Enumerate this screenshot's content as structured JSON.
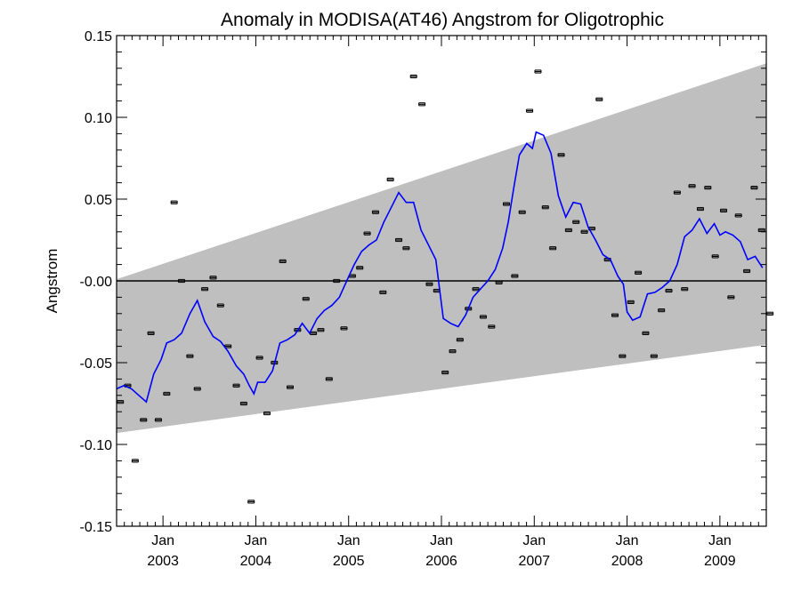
{
  "chart_data": {
    "type": "line",
    "title": "Anomaly in MODISA(AT46) Angstrom for Oligotrophic",
    "ylabel": "Angstrom",
    "xlabel": "",
    "xlim": [
      2002.5,
      2009.5
    ],
    "ylim": [
      -0.15,
      0.15
    ],
    "y_ticks": [
      {
        "value": 0.15,
        "label": "0.15"
      },
      {
        "value": 0.1,
        "label": "0.10"
      },
      {
        "value": 0.05,
        "label": "0.05"
      },
      {
        "value": 0.0,
        "label": "-0.00"
      },
      {
        "value": -0.05,
        "label": "-0.05"
      },
      {
        "value": -0.1,
        "label": "-0.10"
      },
      {
        "value": -0.15,
        "label": "-0.15"
      }
    ],
    "x_ticks": [
      {
        "value": 2003.0,
        "month": "Jan",
        "year": "2003"
      },
      {
        "value": 2004.0,
        "month": "Jan",
        "year": "2004"
      },
      {
        "value": 2005.0,
        "month": "Jan",
        "year": "2005"
      },
      {
        "value": 2006.0,
        "month": "Jan",
        "year": "2006"
      },
      {
        "value": 2007.0,
        "month": "Jan",
        "year": "2007"
      },
      {
        "value": 2008.0,
        "month": "Jan",
        "year": "2008"
      },
      {
        "value": 2009.0,
        "month": "Jan",
        "year": "2009"
      }
    ],
    "confidence_band": {
      "color": "#bfbfbf",
      "x": [
        2002.5,
        2009.5
      ],
      "upper": [
        0.001,
        0.133
      ],
      "lower": [
        -0.093,
        -0.039
      ]
    },
    "zero_line": 0.0,
    "series": [
      {
        "kind": "monthly-anomaly-points",
        "color": "#000000",
        "points": [
          [
            2002.54,
            -0.074
          ],
          [
            2002.62,
            -0.064
          ],
          [
            2002.7,
            -0.11
          ],
          [
            2002.79,
            -0.085
          ],
          [
            2002.87,
            -0.032
          ],
          [
            2002.95,
            -0.085
          ],
          [
            2003.04,
            -0.069
          ],
          [
            2003.12,
            0.048
          ],
          [
            2003.2,
            0.0
          ],
          [
            2003.29,
            -0.046
          ],
          [
            2003.37,
            -0.066
          ],
          [
            2003.45,
            -0.005
          ],
          [
            2003.54,
            0.002
          ],
          [
            2003.62,
            -0.015
          ],
          [
            2003.7,
            -0.04
          ],
          [
            2003.79,
            -0.064
          ],
          [
            2003.87,
            -0.075
          ],
          [
            2003.95,
            -0.135
          ],
          [
            2004.04,
            -0.047
          ],
          [
            2004.12,
            -0.081
          ],
          [
            2004.2,
            -0.05
          ],
          [
            2004.29,
            0.012
          ],
          [
            2004.37,
            -0.065
          ],
          [
            2004.45,
            -0.03
          ],
          [
            2004.54,
            -0.011
          ],
          [
            2004.62,
            -0.032
          ],
          [
            2004.7,
            -0.03
          ],
          [
            2004.79,
            -0.06
          ],
          [
            2004.87,
            0.0
          ],
          [
            2004.95,
            -0.029
          ],
          [
            2005.04,
            0.003
          ],
          [
            2005.12,
            0.008
          ],
          [
            2005.2,
            0.029
          ],
          [
            2005.29,
            0.042
          ],
          [
            2005.37,
            -0.007
          ],
          [
            2005.45,
            0.062
          ],
          [
            2005.54,
            0.025
          ],
          [
            2005.62,
            0.02
          ],
          [
            2005.7,
            0.125
          ],
          [
            2005.79,
            0.108
          ],
          [
            2005.87,
            -0.002
          ],
          [
            2005.95,
            -0.006
          ],
          [
            2006.04,
            -0.056
          ],
          [
            2006.12,
            -0.043
          ],
          [
            2006.2,
            -0.036
          ],
          [
            2006.29,
            -0.017
          ],
          [
            2006.37,
            -0.005
          ],
          [
            2006.45,
            -0.022
          ],
          [
            2006.54,
            -0.028
          ],
          [
            2006.62,
            -0.001
          ],
          [
            2006.7,
            0.047
          ],
          [
            2006.79,
            0.003
          ],
          [
            2006.87,
            0.042
          ],
          [
            2006.95,
            0.104
          ],
          [
            2007.04,
            0.128
          ],
          [
            2007.12,
            0.045
          ],
          [
            2007.2,
            0.02
          ],
          [
            2007.29,
            0.077
          ],
          [
            2007.37,
            0.031
          ],
          [
            2007.45,
            0.036
          ],
          [
            2007.54,
            0.03
          ],
          [
            2007.62,
            0.032
          ],
          [
            2007.7,
            0.111
          ],
          [
            2007.79,
            0.013
          ],
          [
            2007.87,
            -0.021
          ],
          [
            2007.95,
            -0.046
          ],
          [
            2008.04,
            -0.013
          ],
          [
            2008.12,
            0.005
          ],
          [
            2008.2,
            -0.032
          ],
          [
            2008.29,
            -0.046
          ],
          [
            2008.37,
            -0.018
          ],
          [
            2008.45,
            -0.006
          ],
          [
            2008.54,
            0.054
          ],
          [
            2008.62,
            -0.005
          ],
          [
            2008.7,
            0.058
          ],
          [
            2008.79,
            0.044
          ],
          [
            2008.87,
            0.057
          ],
          [
            2008.95,
            0.015
          ],
          [
            2009.04,
            0.043
          ],
          [
            2009.12,
            -0.01
          ],
          [
            2009.2,
            0.04
          ],
          [
            2009.29,
            0.006
          ],
          [
            2009.37,
            0.057
          ],
          [
            2009.45,
            0.031
          ],
          [
            2009.54,
            -0.02
          ]
        ]
      },
      {
        "kind": "running-mean-line",
        "color": "#0000ff",
        "points": [
          [
            2002.5,
            -0.066
          ],
          [
            2002.58,
            -0.064
          ],
          [
            2002.66,
            -0.066
          ],
          [
            2002.74,
            -0.07
          ],
          [
            2002.82,
            -0.074
          ],
          [
            2002.9,
            -0.057
          ],
          [
            2002.98,
            -0.048
          ],
          [
            2003.04,
            -0.038
          ],
          [
            2003.12,
            -0.036
          ],
          [
            2003.2,
            -0.032
          ],
          [
            2003.29,
            -0.02
          ],
          [
            2003.37,
            -0.012
          ],
          [
            2003.45,
            -0.025
          ],
          [
            2003.54,
            -0.034
          ],
          [
            2003.62,
            -0.037
          ],
          [
            2003.7,
            -0.043
          ],
          [
            2003.79,
            -0.052
          ],
          [
            2003.87,
            -0.057
          ],
          [
            2003.93,
            -0.064
          ],
          [
            2003.98,
            -0.069
          ],
          [
            2004.02,
            -0.062
          ],
          [
            2004.1,
            -0.062
          ],
          [
            2004.18,
            -0.055
          ],
          [
            2004.26,
            -0.038
          ],
          [
            2004.34,
            -0.036
          ],
          [
            2004.42,
            -0.033
          ],
          [
            2004.5,
            -0.026
          ],
          [
            2004.58,
            -0.032
          ],
          [
            2004.66,
            -0.023
          ],
          [
            2004.74,
            -0.018
          ],
          [
            2004.82,
            -0.015
          ],
          [
            2004.9,
            -0.01
          ],
          [
            2004.98,
            0.0
          ],
          [
            2005.06,
            0.01
          ],
          [
            2005.14,
            0.018
          ],
          [
            2005.22,
            0.022
          ],
          [
            2005.3,
            0.025
          ],
          [
            2005.38,
            0.036
          ],
          [
            2005.46,
            0.045
          ],
          [
            2005.54,
            0.054
          ],
          [
            2005.62,
            0.048
          ],
          [
            2005.7,
            0.048
          ],
          [
            2005.78,
            0.031
          ],
          [
            2005.86,
            0.022
          ],
          [
            2005.94,
            0.013
          ],
          [
            2006.02,
            -0.023
          ],
          [
            2006.1,
            -0.026
          ],
          [
            2006.18,
            -0.028
          ],
          [
            2006.26,
            -0.021
          ],
          [
            2006.34,
            -0.01
          ],
          [
            2006.42,
            -0.005
          ],
          [
            2006.5,
            0.0
          ],
          [
            2006.58,
            0.007
          ],
          [
            2006.66,
            0.02
          ],
          [
            2006.72,
            0.036
          ],
          [
            2006.78,
            0.057
          ],
          [
            2006.84,
            0.077
          ],
          [
            2006.92,
            0.084
          ],
          [
            2006.98,
            0.081
          ],
          [
            2007.02,
            0.091
          ],
          [
            2007.1,
            0.089
          ],
          [
            2007.18,
            0.078
          ],
          [
            2007.26,
            0.052
          ],
          [
            2007.34,
            0.039
          ],
          [
            2007.42,
            0.048
          ],
          [
            2007.5,
            0.047
          ],
          [
            2007.58,
            0.033
          ],
          [
            2007.66,
            0.025
          ],
          [
            2007.74,
            0.016
          ],
          [
            2007.82,
            0.013
          ],
          [
            2007.9,
            0.003
          ],
          [
            2007.96,
            -0.002
          ],
          [
            2008.0,
            -0.019
          ],
          [
            2008.06,
            -0.024
          ],
          [
            2008.14,
            -0.022
          ],
          [
            2008.22,
            -0.008
          ],
          [
            2008.3,
            -0.007
          ],
          [
            2008.38,
            -0.004
          ],
          [
            2008.46,
            0.0
          ],
          [
            2008.54,
            0.01
          ],
          [
            2008.62,
            0.027
          ],
          [
            2008.7,
            0.031
          ],
          [
            2008.78,
            0.038
          ],
          [
            2008.86,
            0.029
          ],
          [
            2008.94,
            0.035
          ],
          [
            2009.0,
            0.028
          ],
          [
            2009.06,
            0.03
          ],
          [
            2009.14,
            0.028
          ],
          [
            2009.22,
            0.024
          ],
          [
            2009.3,
            0.013
          ],
          [
            2009.38,
            0.015
          ],
          [
            2009.46,
            0.008
          ]
        ]
      }
    ],
    "grid": false,
    "legend": "none"
  }
}
